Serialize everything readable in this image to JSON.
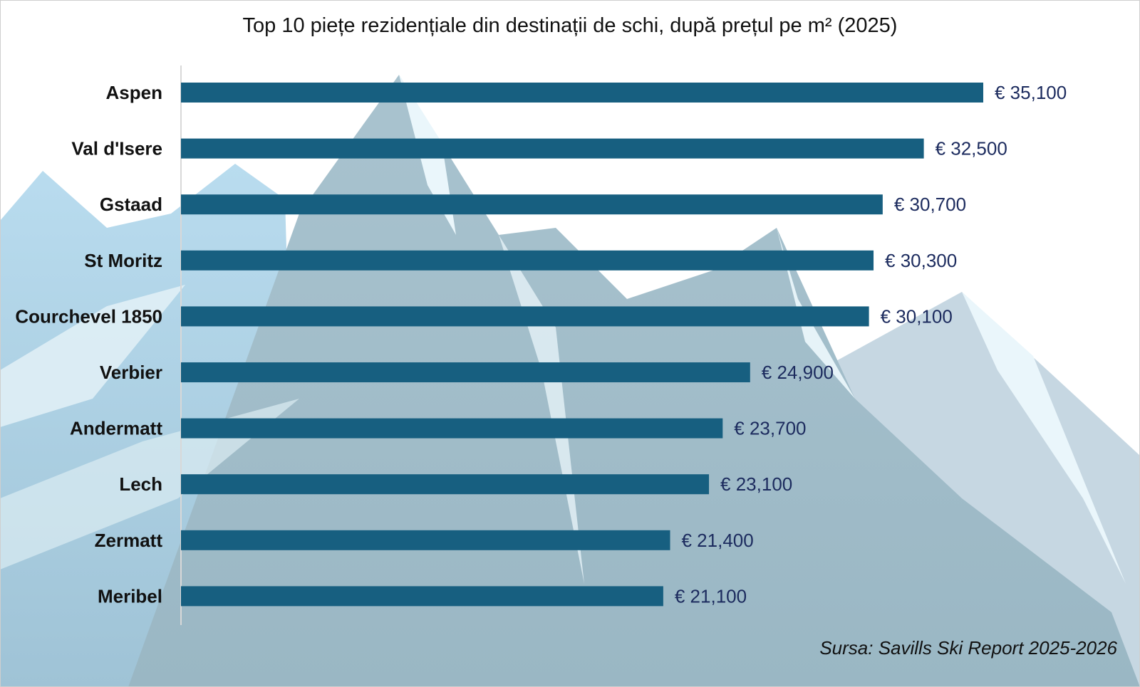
{
  "chart_data": {
    "type": "bar",
    "orientation": "horizontal",
    "title": "Top 10 piețe rezidențiale din destinații de schi, după prețul pe m² (2025)",
    "categories": [
      "Aspen",
      "Val d'Isere",
      "Gstaad",
      "St Moritz",
      "Courchevel 1850",
      "Verbier",
      "Andermatt",
      "Lech",
      "Zermatt",
      "Meribel"
    ],
    "values": [
      35100,
      32500,
      30700,
      30300,
      30100,
      24900,
      23700,
      23100,
      21400,
      21100
    ],
    "data_labels": [
      "€ 35,100",
      "€ 32,500",
      "€ 30,700",
      "€ 30,300",
      "€ 30,100",
      "€ 24,900",
      "€ 23,700",
      "€ 23,100",
      "€ 21,400",
      "€ 21,100"
    ],
    "xlim": [
      0,
      35100
    ],
    "grid": false,
    "legend": "none",
    "bar_color": "#175f80",
    "label_color": "#1c2b5e",
    "source": "Sursa: Savills Ski Report 2025-2026"
  }
}
